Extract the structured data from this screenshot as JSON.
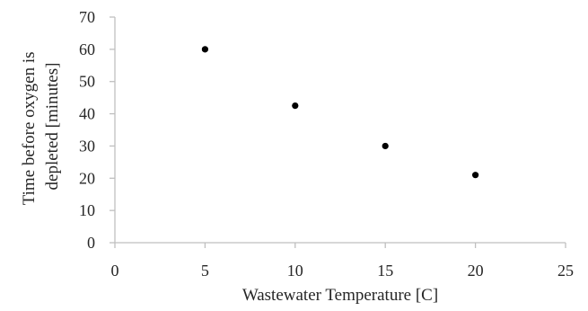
{
  "chart_data": {
    "type": "scatter",
    "title": "",
    "xlabel": "Wastewater Temperature [C]",
    "ylabel_lines": [
      "Time before oxygen is",
      "depleted [minutes]"
    ],
    "xlim": [
      0,
      25
    ],
    "ylim": [
      0,
      70
    ],
    "xticks": [
      0,
      5,
      10,
      15,
      20,
      25
    ],
    "yticks": [
      0,
      10,
      20,
      30,
      40,
      50,
      60,
      70
    ],
    "grid": false,
    "legend": "none",
    "marker_color": "#000000",
    "axis_color": "#bfbfbf",
    "series": [
      {
        "points": [
          {
            "x": 5,
            "y": 60
          },
          {
            "x": 10,
            "y": 42.5
          },
          {
            "x": 15,
            "y": 30
          },
          {
            "x": 20,
            "y": 21
          }
        ]
      }
    ]
  }
}
